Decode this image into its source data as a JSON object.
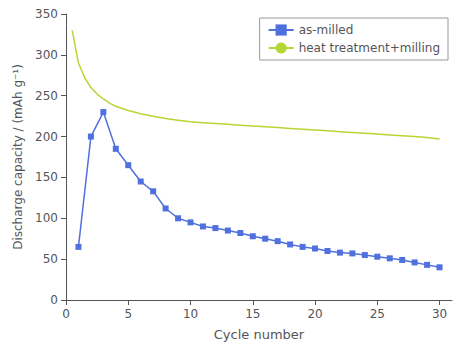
{
  "chart_data": {
    "type": "line",
    "title": "",
    "xlabel": "Cycle number",
    "ylabel": "Discharge capacity / (mAh g⁻¹)",
    "xlim": [
      0,
      31
    ],
    "xticks": [
      0,
      5,
      10,
      15,
      20,
      25,
      30
    ],
    "ylim": [
      0,
      350
    ],
    "yticks": [
      0,
      50,
      100,
      150,
      200,
      250,
      300,
      350
    ],
    "grid": false,
    "legend": "upper right",
    "series": [
      {
        "name": "as-milled",
        "marker": "square",
        "x": [
          1,
          2,
          3,
          4,
          5,
          6,
          7,
          8,
          9,
          10,
          11,
          12,
          13,
          14,
          15,
          16,
          17,
          18,
          19,
          20,
          21,
          22,
          23,
          24,
          25,
          26,
          27,
          28,
          29,
          30
        ],
        "values": [
          65,
          200,
          230,
          185,
          165,
          145,
          133,
          112,
          100,
          95,
          90,
          88,
          85,
          82,
          78,
          75,
          72,
          68,
          65,
          63,
          60,
          58,
          57,
          55,
          53,
          51,
          49,
          46,
          43,
          40
        ]
      },
      {
        "name": "heat treatment+milling",
        "marker": "none",
        "x": [
          0.5,
          1.0,
          1.5,
          2.0,
          2.5,
          3.0,
          3.5,
          4.0,
          5.0,
          6.0,
          7.0,
          8.0,
          9.0,
          10.0,
          11.0,
          12.0,
          13.0,
          14.0,
          15.0,
          16.0,
          17.0,
          18.0,
          19.0,
          20.0,
          21.0,
          22.0,
          23.0,
          24.0,
          25.0,
          26.0,
          27.0,
          28.0,
          29.0,
          30.0
        ],
        "values": [
          330,
          290,
          272,
          260,
          252,
          246,
          241,
          237,
          232,
          228,
          225,
          222,
          220,
          218,
          217,
          216,
          215,
          214,
          213,
          212,
          211,
          210,
          209,
          208,
          207,
          206,
          205,
          204,
          203,
          202,
          201,
          200,
          199,
          197
        ]
      }
    ]
  }
}
